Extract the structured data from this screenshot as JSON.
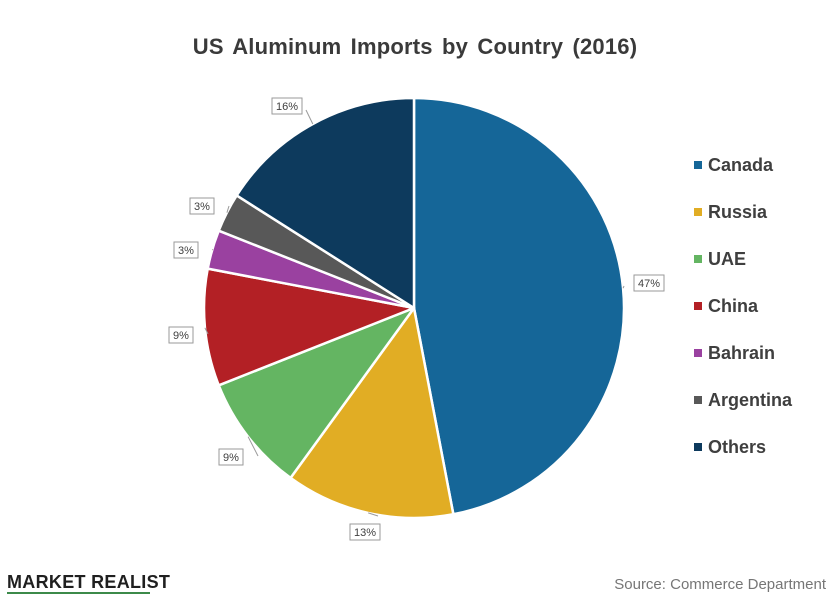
{
  "chart_data": {
    "type": "pie",
    "title": "US Aluminum Imports  by Country  (2016)",
    "slices": [
      {
        "label": "Canada",
        "value": 47,
        "display": "47%",
        "color": "#156698"
      },
      {
        "label": "Russia",
        "value": 13,
        "display": "13%",
        "color": "#e1ad24"
      },
      {
        "label": "UAE",
        "value": 9,
        "display": "9%",
        "color": "#64b562"
      },
      {
        "label": "China",
        "value": 9,
        "display": "9%",
        "color": "#b32025"
      },
      {
        "label": "Bahrain",
        "value": 3,
        "display": "3%",
        "color": "#9a41a0"
      },
      {
        "label": "Argentina",
        "value": 3,
        "display": "3%",
        "color": "#585858"
      },
      {
        "label": "Others",
        "value": 16,
        "display": "16%",
        "color": "#0d3a5d"
      }
    ],
    "legend_position": "right",
    "start_angle": "12 o'clock, clockwise"
  },
  "footer": {
    "brand": "MARKET REALIST",
    "source": "Source:  Commerce Department"
  }
}
